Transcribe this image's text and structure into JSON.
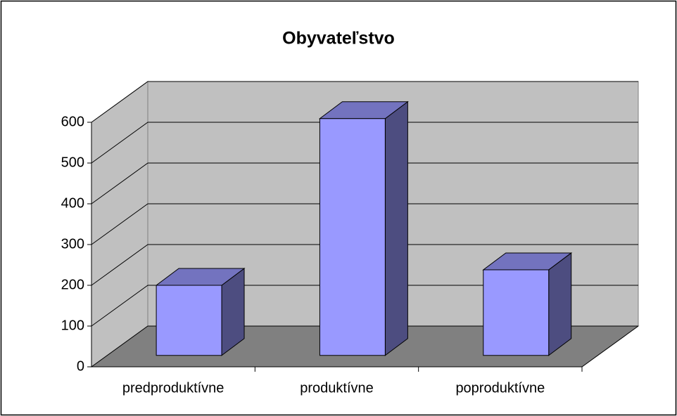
{
  "chart_data": {
    "type": "bar3d",
    "title": "Obyvateľstvo",
    "categories": [
      "predproduktívne",
      "produktívne",
      "poproduktívne"
    ],
    "values": [
      172,
      581,
      210
    ],
    "color": "#9999ff",
    "ylim": [
      0,
      600
    ],
    "yticks": [
      0,
      100,
      200,
      300,
      400,
      500,
      600
    ],
    "grid": true
  }
}
